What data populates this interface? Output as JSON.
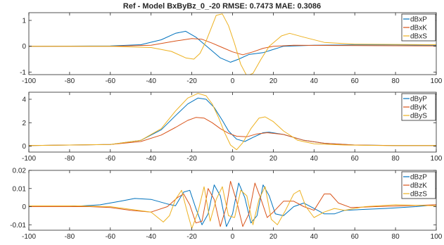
{
  "title": "Ref - Model  BxByBz_0_-20 RMSE: 0.7473 MAE: 0.3086",
  "colors": {
    "P": "#0072BD",
    "K": "#D95319",
    "S": "#EDB120",
    "axis": "#262626"
  },
  "chart_data": [
    {
      "type": "line",
      "xlim": [
        -100,
        100
      ],
      "ylim": [
        -1.1,
        1.3
      ],
      "xticks": [
        -100,
        -80,
        -60,
        -40,
        -20,
        0,
        20,
        40,
        60,
        80,
        100
      ],
      "yticks": [
        -1,
        0,
        1
      ],
      "legend": "top-right",
      "series": [
        {
          "name": "dBxP",
          "color": "#0072BD",
          "points": [
            [
              -100,
              0
            ],
            [
              -60,
              0.01
            ],
            [
              -45,
              0.06
            ],
            [
              -35,
              0.25
            ],
            [
              -28,
              0.5
            ],
            [
              -23,
              0.58
            ],
            [
              -18,
              0.35
            ],
            [
              -12,
              -0.05
            ],
            [
              -6,
              -0.45
            ],
            [
              -1,
              -0.62
            ],
            [
              3,
              -0.5
            ],
            [
              8,
              -0.32
            ],
            [
              15,
              -0.25
            ],
            [
              25,
              0
            ],
            [
              40,
              0.04
            ],
            [
              60,
              0.05
            ],
            [
              80,
              0.05
            ],
            [
              100,
              0.04
            ]
          ]
        },
        {
          "name": "dBxK",
          "color": "#D95319",
          "points": [
            [
              -100,
              0
            ],
            [
              -60,
              0
            ],
            [
              -40,
              0.04
            ],
            [
              -28,
              0.2
            ],
            [
              -20,
              0.3
            ],
            [
              -15,
              0.27
            ],
            [
              -10,
              0.12
            ],
            [
              -5,
              -0.05
            ],
            [
              0,
              -0.22
            ],
            [
              5,
              -0.33
            ],
            [
              10,
              -0.22
            ],
            [
              15,
              -0.08
            ],
            [
              20,
              0
            ],
            [
              30,
              0.04
            ],
            [
              50,
              0.03
            ],
            [
              70,
              0.02
            ],
            [
              100,
              0.01
            ]
          ]
        },
        {
          "name": "dBxS",
          "color": "#EDB120",
          "points": [
            [
              -100,
              0
            ],
            [
              -60,
              0
            ],
            [
              -40,
              -0.05
            ],
            [
              -30,
              -0.2
            ],
            [
              -23,
              -0.45
            ],
            [
              -19,
              -0.5
            ],
            [
              -16,
              -0.28
            ],
            [
              -13,
              0.2
            ],
            [
              -10,
              0.8
            ],
            [
              -8,
              1.2
            ],
            [
              -5,
              1.25
            ],
            [
              -2,
              0.8
            ],
            [
              1,
              0.1
            ],
            [
              4,
              -0.7
            ],
            [
              7,
              -1.15
            ],
            [
              10,
              -1.05
            ],
            [
              14,
              -0.5
            ],
            [
              18,
              0
            ],
            [
              24,
              0.4
            ],
            [
              28,
              0.5
            ],
            [
              35,
              0.35
            ],
            [
              45,
              0.15
            ],
            [
              60,
              0.08
            ],
            [
              80,
              0.07
            ],
            [
              100,
              0.06
            ]
          ]
        }
      ]
    },
    {
      "type": "line",
      "xlim": [
        -100,
        100
      ],
      "ylim": [
        -0.5,
        4.6
      ],
      "xticks": [
        -100,
        -80,
        -60,
        -40,
        -20,
        0,
        20,
        40,
        60,
        80,
        100
      ],
      "yticks": [
        0,
        2,
        4
      ],
      "legend": "top-right",
      "series": [
        {
          "name": "dByP",
          "color": "#0072BD",
          "points": [
            [
              -100,
              0.05
            ],
            [
              -60,
              0.15
            ],
            [
              -45,
              0.5
            ],
            [
              -35,
              1.4
            ],
            [
              -28,
              2.6
            ],
            [
              -22,
              3.6
            ],
            [
              -17,
              4.1
            ],
            [
              -13,
              4.0
            ],
            [
              -9,
              3.3
            ],
            [
              -5,
              2.2
            ],
            [
              -2,
              1.3
            ],
            [
              2,
              0.6
            ],
            [
              6,
              0.4
            ],
            [
              10,
              0.75
            ],
            [
              15,
              1.15
            ],
            [
              18,
              1.2
            ],
            [
              25,
              1.0
            ],
            [
              35,
              0.5
            ],
            [
              45,
              0.25
            ],
            [
              60,
              0.1
            ],
            [
              80,
              0.06
            ],
            [
              100,
              0.05
            ]
          ]
        },
        {
          "name": "dByK",
          "color": "#D95319",
          "points": [
            [
              -100,
              0.05
            ],
            [
              -60,
              0.15
            ],
            [
              -45,
              0.4
            ],
            [
              -35,
              0.95
            ],
            [
              -28,
              1.6
            ],
            [
              -22,
              2.2
            ],
            [
              -18,
              2.45
            ],
            [
              -14,
              2.4
            ],
            [
              -10,
              2.0
            ],
            [
              -6,
              1.5
            ],
            [
              -2,
              1.1
            ],
            [
              2,
              0.85
            ],
            [
              7,
              0.8
            ],
            [
              12,
              1.05
            ],
            [
              17,
              1.15
            ],
            [
              25,
              1.0
            ],
            [
              35,
              0.5
            ],
            [
              45,
              0.25
            ],
            [
              60,
              0.1
            ],
            [
              80,
              0.06
            ],
            [
              100,
              0.05
            ]
          ]
        },
        {
          "name": "dByS",
          "color": "#EDB120",
          "points": [
            [
              -100,
              0.05
            ],
            [
              -60,
              0.15
            ],
            [
              -45,
              0.5
            ],
            [
              -35,
              1.5
            ],
            [
              -28,
              3.0
            ],
            [
              -22,
              4.1
            ],
            [
              -17,
              4.5
            ],
            [
              -13,
              4.3
            ],
            [
              -10,
              3.6
            ],
            [
              -7,
              2.5
            ],
            [
              -4,
              1.2
            ],
            [
              -1,
              0.1
            ],
            [
              2,
              -0.3
            ],
            [
              5,
              0.3
            ],
            [
              9,
              1.5
            ],
            [
              13,
              2.4
            ],
            [
              16,
              2.5
            ],
            [
              20,
              2.1
            ],
            [
              25,
              1.3
            ],
            [
              32,
              0.5
            ],
            [
              40,
              0.2
            ],
            [
              55,
              0.1
            ],
            [
              75,
              0.06
            ],
            [
              100,
              0.05
            ]
          ]
        }
      ]
    },
    {
      "type": "line",
      "xlim": [
        -100,
        100
      ],
      "ylim": [
        -0.013,
        0.02
      ],
      "xticks": [
        -100,
        -80,
        -60,
        -40,
        -20,
        0,
        20,
        40,
        60,
        80,
        100
      ],
      "yticks": [
        -0.01,
        0,
        0.01,
        0.02
      ],
      "legend": "top-right",
      "series": [
        {
          "name": "dBzP",
          "color": "#0072BD",
          "points": [
            [
              -100,
              0
            ],
            [
              -80,
              0
            ],
            [
              -65,
              0.001
            ],
            [
              -55,
              0.003
            ],
            [
              -48,
              0.0045
            ],
            [
              -40,
              0.004
            ],
            [
              -32,
              0.0015
            ],
            [
              -28,
              0.0005
            ],
            [
              -24,
              0.008
            ],
            [
              -21,
              0.009
            ],
            [
              -18,
              -0.001
            ],
            [
              -15,
              -0.01
            ],
            [
              -12,
              -0.004
            ],
            [
              -9,
              0.012
            ],
            [
              -6,
              0.006
            ],
            [
              -3,
              -0.011
            ],
            [
              0,
              -0.004
            ],
            [
              3,
              0.013
            ],
            [
              6,
              0.005
            ],
            [
              9,
              -0.009
            ],
            [
              12,
              -0.005
            ],
            [
              15,
              0.012
            ],
            [
              18,
              0.006
            ],
            [
              21,
              -0.004
            ],
            [
              25,
              -0.005
            ],
            [
              30,
              0
            ],
            [
              35,
              0.002
            ],
            [
              40,
              -0.001
            ],
            [
              45,
              -0.004
            ],
            [
              50,
              -0.004
            ],
            [
              55,
              -0.002
            ],
            [
              65,
              -0.0015
            ],
            [
              75,
              -0.001
            ],
            [
              90,
              0
            ],
            [
              100,
              0.001
            ]
          ]
        },
        {
          "name": "dBzK",
          "color": "#D95319",
          "points": [
            [
              -100,
              0
            ],
            [
              -80,
              0
            ],
            [
              -70,
              0
            ],
            [
              -60,
              -0.0005
            ],
            [
              -50,
              -0.002
            ],
            [
              -40,
              -0.003
            ],
            [
              -32,
              0
            ],
            [
              -27,
              0.005
            ],
            [
              -24,
              0.007
            ],
            [
              -21,
              0.001
            ],
            [
              -18,
              -0.009
            ],
            [
              -15,
              -0.008
            ],
            [
              -12,
              0.01
            ],
            [
              -9,
              0.004
            ],
            [
              -6,
              -0.011
            ],
            [
              -3,
              0
            ],
            [
              -1,
              0.014
            ],
            [
              2,
              0.003
            ],
            [
              5,
              -0.011
            ],
            [
              8,
              -0.004
            ],
            [
              11,
              0.013
            ],
            [
              14,
              0.004
            ],
            [
              17,
              -0.006
            ],
            [
              20,
              -0.003
            ],
            [
              25,
              0.003
            ],
            [
              30,
              0.003
            ],
            [
              35,
              0
            ],
            [
              40,
              -0.002
            ],
            [
              45,
              0.007
            ],
            [
              48,
              0.007
            ],
            [
              52,
              0.002
            ],
            [
              58,
              -0.0005
            ],
            [
              70,
              0
            ],
            [
              85,
              0.0005
            ],
            [
              100,
              0.001
            ]
          ]
        },
        {
          "name": "dBzS",
          "color": "#EDB120",
          "points": [
            [
              -100,
              0.0005
            ],
            [
              -80,
              0.0005
            ],
            [
              -60,
              0
            ],
            [
              -50,
              -0.0015
            ],
            [
              -40,
              -0.003
            ],
            [
              -34,
              -0.0085
            ],
            [
              -31,
              -0.005
            ],
            [
              -28,
              0.004
            ],
            [
              -25,
              0.009
            ],
            [
              -22,
              -0.004
            ],
            [
              -20,
              -0.012
            ],
            [
              -17,
              -0.003
            ],
            [
              -14,
              0.011
            ],
            [
              -11,
              -0.008
            ],
            [
              -8,
              0.004
            ],
            [
              -5,
              0.011
            ],
            [
              -2,
              -0.005
            ],
            [
              1,
              -0.006
            ],
            [
              4,
              0.009
            ],
            [
              7,
              0.006
            ],
            [
              10,
              -0.01
            ],
            [
              13,
              0.004
            ],
            [
              16,
              0.011
            ],
            [
              19,
              -0.007
            ],
            [
              22,
              -0.01
            ],
            [
              26,
              -0.002
            ],
            [
              30,
              0.007
            ],
            [
              33,
              0.009
            ],
            [
              36,
              0
            ],
            [
              40,
              -0.006
            ],
            [
              45,
              -0.003
            ],
            [
              50,
              -0.001
            ],
            [
              55,
              -0.002
            ],
            [
              65,
              0
            ],
            [
              80,
              0.001
            ],
            [
              100,
              0.0005
            ]
          ]
        }
      ]
    }
  ]
}
